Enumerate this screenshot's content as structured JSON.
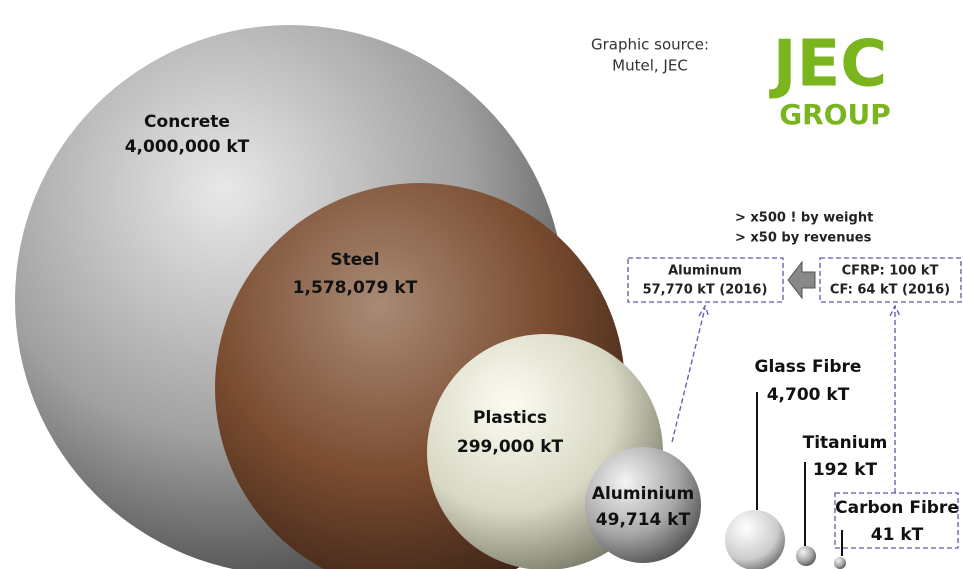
{
  "source": {
    "line1": "Graphic source:",
    "line2": "Mutel, JEC"
  },
  "logo": {
    "main": "JEC",
    "sub": "GROUP"
  },
  "notes": [
    "> x500 ! by weight",
    "> x50 by revenues"
  ],
  "boxes": [
    {
      "line1": "Aluminum",
      "line2": "57,770 kT (2016)"
    },
    {
      "line1": "CFRP: 100 kT",
      "line2": "CF: 64 kT (2016)"
    }
  ],
  "materials": [
    {
      "name": "Concrete",
      "amount": "4,000,000 kT"
    },
    {
      "name": "Steel",
      "amount": "1,578,079 kT"
    },
    {
      "name": "Plastics",
      "amount": "299,000 kT"
    },
    {
      "name": "Aluminium",
      "amount": "49,714 kT"
    },
    {
      "name": "Glass Fibre",
      "amount": "4,700 kT"
    },
    {
      "name": "Titanium",
      "amount": "192 kT"
    },
    {
      "name": "Carbon Fibre",
      "amount": "41 kT"
    }
  ]
}
